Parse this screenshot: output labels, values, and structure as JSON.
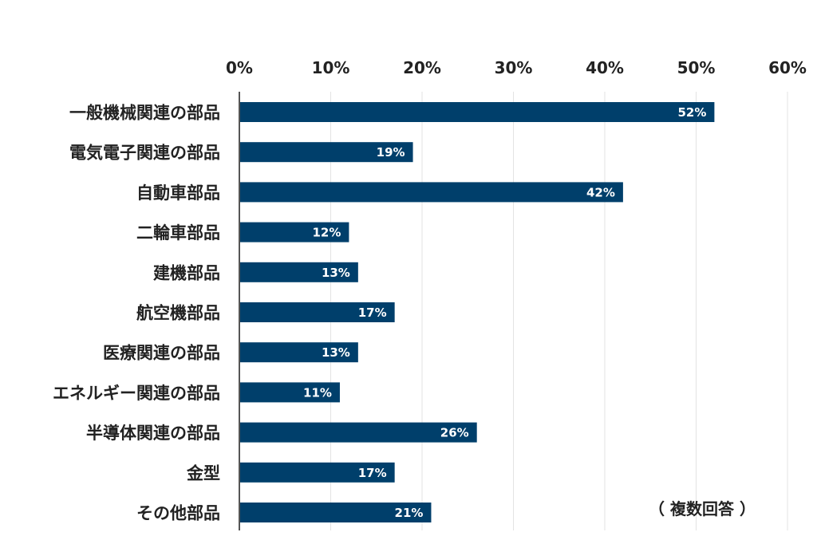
{
  "chart_data": {
    "type": "bar",
    "orientation": "horizontal",
    "categories": [
      "一般機械関連の部品",
      "電気電子関連の部品",
      "自動車部品",
      "二輪車部品",
      "建機部品",
      "航空機部品",
      "医療関連の部品",
      "エネルギー関連の部品",
      "半導体関連の部品",
      "金型",
      "その他部品"
    ],
    "values": [
      52,
      19,
      42,
      12,
      13,
      17,
      13,
      11,
      26,
      17,
      21
    ],
    "value_labels": [
      "52%",
      "19%",
      "42%",
      "12%",
      "13%",
      "17%",
      "13%",
      "11%",
      "26%",
      "17%",
      "21%"
    ],
    "xlim": [
      0,
      60
    ],
    "xticks": [
      0,
      10,
      20,
      30,
      40,
      50,
      60
    ],
    "xtick_labels": [
      "0%",
      "10%",
      "20%",
      "30%",
      "40%",
      "50%",
      "60%"
    ],
    "x_axis_position": "top",
    "grid": true,
    "bar_color": "#003f6b",
    "grid_color": "#e3e3e3",
    "axis_color": "#555555",
    "annotation": "（ 複数回答 ）"
  }
}
